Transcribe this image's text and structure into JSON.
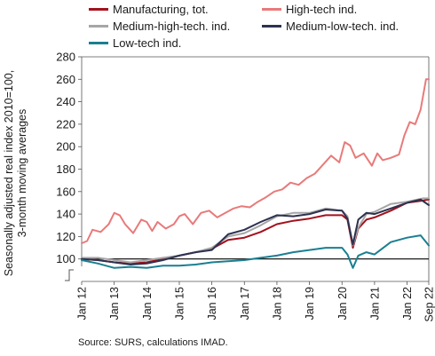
{
  "source": "Source: SURS, calculations IMAD.",
  "chart_data": {
    "type": "line",
    "ylabel_line1": "Seasonally adjusted real index 2010=100,",
    "ylabel_line2": "3-month moving averages",
    "ylim": [
      80,
      280
    ],
    "yticks": [
      "280",
      "260",
      "240",
      "220",
      "200",
      "180",
      "160",
      "140",
      "120",
      "100"
    ],
    "xticks": [
      "Jan 12",
      "Jan 13",
      "Jan 14",
      "Jan 15",
      "Jan 16",
      "Jan 17",
      "Jan 18",
      "Jan 19",
      "Jan 20",
      "Jan 21",
      "Jan 22",
      "Sep 22"
    ],
    "x_start": "2012-01",
    "x_end": "2022-09",
    "grid": false,
    "reference_line": 100,
    "legend_position": "top",
    "series": [
      {
        "name": "Manufacturing, tot.",
        "color": "#a3111d",
        "points": [
          [
            "2012-01",
            100
          ],
          [
            "2012-07",
            99
          ],
          [
            "2013-01",
            97
          ],
          [
            "2013-07",
            96
          ],
          [
            "2014-01",
            97
          ],
          [
            "2014-07",
            100
          ],
          [
            "2015-01",
            103
          ],
          [
            "2015-07",
            106
          ],
          [
            "2016-01",
            109
          ],
          [
            "2016-07",
            117
          ],
          [
            "2017-01",
            119
          ],
          [
            "2017-07",
            124
          ],
          [
            "2018-01",
            131
          ],
          [
            "2018-07",
            134
          ],
          [
            "2019-01",
            136
          ],
          [
            "2019-07",
            139
          ],
          [
            "2020-01",
            139
          ],
          [
            "2020-03",
            135
          ],
          [
            "2020-05",
            110
          ],
          [
            "2020-07",
            127
          ],
          [
            "2020-10",
            135
          ],
          [
            "2021-01",
            137
          ],
          [
            "2021-07",
            143
          ],
          [
            "2022-01",
            150
          ],
          [
            "2022-07",
            152
          ],
          [
            "2022-09",
            153
          ]
        ]
      },
      {
        "name": "High-tech ind.",
        "color": "#e87a7a",
        "points": [
          [
            "2012-01",
            114
          ],
          [
            "2012-03",
            116
          ],
          [
            "2012-05",
            126
          ],
          [
            "2012-08",
            124
          ],
          [
            "2012-11",
            131
          ],
          [
            "2013-01",
            141
          ],
          [
            "2013-03",
            139
          ],
          [
            "2013-05",
            131
          ],
          [
            "2013-08",
            123
          ],
          [
            "2013-11",
            135
          ],
          [
            "2014-01",
            133
          ],
          [
            "2014-03",
            125
          ],
          [
            "2014-05",
            133
          ],
          [
            "2014-08",
            127
          ],
          [
            "2014-11",
            131
          ],
          [
            "2015-01",
            138
          ],
          [
            "2015-03",
            140
          ],
          [
            "2015-06",
            131
          ],
          [
            "2015-09",
            141
          ],
          [
            "2015-12",
            143
          ],
          [
            "2016-03",
            137
          ],
          [
            "2016-06",
            141
          ],
          [
            "2016-09",
            145
          ],
          [
            "2016-12",
            147
          ],
          [
            "2017-03",
            146
          ],
          [
            "2017-06",
            151
          ],
          [
            "2017-09",
            155
          ],
          [
            "2017-12",
            160
          ],
          [
            "2018-03",
            162
          ],
          [
            "2018-06",
            168
          ],
          [
            "2018-09",
            166
          ],
          [
            "2018-12",
            172
          ],
          [
            "2019-03",
            176
          ],
          [
            "2019-06",
            184
          ],
          [
            "2019-09",
            192
          ],
          [
            "2019-12",
            186
          ],
          [
            "2020-02",
            204
          ],
          [
            "2020-04",
            201
          ],
          [
            "2020-06",
            190
          ],
          [
            "2020-09",
            194
          ],
          [
            "2020-12",
            183
          ],
          [
            "2021-02",
            194
          ],
          [
            "2021-04",
            188
          ],
          [
            "2021-07",
            190
          ],
          [
            "2021-10",
            193
          ],
          [
            "2021-12",
            210
          ],
          [
            "2022-02",
            222
          ],
          [
            "2022-04",
            220
          ],
          [
            "2022-06",
            233
          ],
          [
            "2022-08",
            260
          ],
          [
            "2022-09",
            260
          ]
        ]
      },
      {
        "name": "Medium-high-tech. ind.",
        "color": "#a6a6a6",
        "points": [
          [
            "2012-01",
            101
          ],
          [
            "2012-07",
            101
          ],
          [
            "2013-01",
            99
          ],
          [
            "2013-07",
            97
          ],
          [
            "2014-01",
            99
          ],
          [
            "2014-07",
            101
          ],
          [
            "2015-01",
            103
          ],
          [
            "2015-07",
            106
          ],
          [
            "2016-01",
            110
          ],
          [
            "2016-07",
            120
          ],
          [
            "2017-01",
            123
          ],
          [
            "2017-07",
            130
          ],
          [
            "2018-01",
            138
          ],
          [
            "2018-07",
            141
          ],
          [
            "2019-01",
            141
          ],
          [
            "2019-07",
            145
          ],
          [
            "2020-01",
            143
          ],
          [
            "2020-03",
            138
          ],
          [
            "2020-05",
            112
          ],
          [
            "2020-07",
            128
          ],
          [
            "2020-10",
            140
          ],
          [
            "2021-01",
            142
          ],
          [
            "2021-07",
            149
          ],
          [
            "2022-01",
            151
          ],
          [
            "2022-07",
            154
          ],
          [
            "2022-09",
            154
          ]
        ]
      },
      {
        "name": "Medium-low-tech. ind.",
        "color": "#2c3250",
        "points": [
          [
            "2012-01",
            100
          ],
          [
            "2012-07",
            99
          ],
          [
            "2013-01",
            97
          ],
          [
            "2013-07",
            95
          ],
          [
            "2014-01",
            96
          ],
          [
            "2014-07",
            99
          ],
          [
            "2015-01",
            103
          ],
          [
            "2015-07",
            106
          ],
          [
            "2016-01",
            108
          ],
          [
            "2016-07",
            122
          ],
          [
            "2017-01",
            126
          ],
          [
            "2017-07",
            133
          ],
          [
            "2018-01",
            139
          ],
          [
            "2018-07",
            138
          ],
          [
            "2019-01",
            140
          ],
          [
            "2019-07",
            144
          ],
          [
            "2020-01",
            143
          ],
          [
            "2020-03",
            136
          ],
          [
            "2020-05",
            113
          ],
          [
            "2020-07",
            135
          ],
          [
            "2020-10",
            141
          ],
          [
            "2021-01",
            140
          ],
          [
            "2021-07",
            145
          ],
          [
            "2022-01",
            150
          ],
          [
            "2022-06",
            153
          ],
          [
            "2022-09",
            148
          ]
        ]
      },
      {
        "name": "Low-tech ind.",
        "color": "#1a7f91",
        "points": [
          [
            "2012-01",
            99
          ],
          [
            "2012-07",
            96
          ],
          [
            "2013-01",
            92
          ],
          [
            "2013-07",
            93
          ],
          [
            "2014-01",
            92
          ],
          [
            "2014-07",
            94
          ],
          [
            "2015-01",
            94
          ],
          [
            "2015-07",
            95
          ],
          [
            "2016-01",
            97
          ],
          [
            "2016-07",
            98
          ],
          [
            "2017-01",
            99
          ],
          [
            "2017-07",
            101
          ],
          [
            "2018-01",
            103
          ],
          [
            "2018-07",
            106
          ],
          [
            "2019-01",
            108
          ],
          [
            "2019-07",
            110
          ],
          [
            "2020-01",
            110
          ],
          [
            "2020-03",
            104
          ],
          [
            "2020-05",
            92
          ],
          [
            "2020-07",
            103
          ],
          [
            "2020-10",
            106
          ],
          [
            "2021-01",
            104
          ],
          [
            "2021-07",
            115
          ],
          [
            "2022-01",
            119
          ],
          [
            "2022-06",
            121
          ],
          [
            "2022-09",
            112
          ]
        ]
      }
    ]
  }
}
